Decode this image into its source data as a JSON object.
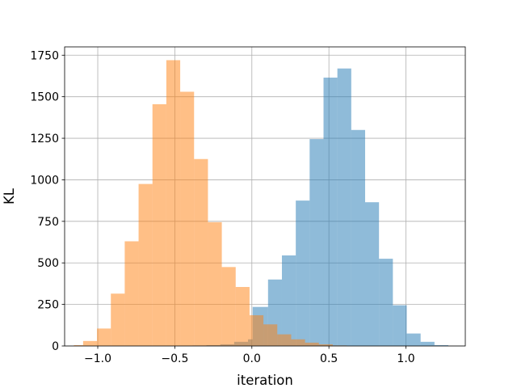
{
  "chart_data": {
    "type": "histogram",
    "title": "",
    "xlabel": "iteration",
    "ylabel": "KL",
    "xlim": [
      -1.215,
      1.385
    ],
    "ylim": [
      0,
      1800
    ],
    "grid": true,
    "legend": false,
    "xticks": [
      {
        "value": -1.0,
        "label": "−1.0"
      },
      {
        "value": -0.5,
        "label": "−0.5"
      },
      {
        "value": 0.0,
        "label": "0.0"
      },
      {
        "value": 0.5,
        "label": "0.5"
      },
      {
        "value": 1.0,
        "label": "1.0"
      }
    ],
    "yticks": [
      {
        "value": 0,
        "label": "0"
      },
      {
        "value": 250,
        "label": "250"
      },
      {
        "value": 500,
        "label": "500"
      },
      {
        "value": 750,
        "label": "750"
      },
      {
        "value": 1000,
        "label": "1000"
      },
      {
        "value": 1250,
        "label": "1250"
      },
      {
        "value": 1500,
        "label": "1500"
      },
      {
        "value": 1750,
        "label": "1750"
      }
    ],
    "series": [
      {
        "color": "#1f77b4",
        "opacity": 0.5,
        "bins": [
          {
            "x0": -0.475,
            "x1": -0.385,
            "value": 1
          },
          {
            "x0": -0.385,
            "x1": -0.295,
            "value": 3
          },
          {
            "x0": -0.295,
            "x1": -0.205,
            "value": 5
          },
          {
            "x0": -0.205,
            "x1": -0.115,
            "value": 10
          },
          {
            "x0": -0.115,
            "x1": -0.025,
            "value": 25
          },
          {
            "x0": -0.025,
            "x1": 0.005,
            "value": 40
          },
          {
            "x0": 0.005,
            "x1": 0.105,
            "value": 235
          },
          {
            "x0": 0.105,
            "x1": 0.195,
            "value": 400
          },
          {
            "x0": 0.195,
            "x1": 0.285,
            "value": 545
          },
          {
            "x0": 0.285,
            "x1": 0.375,
            "value": 875
          },
          {
            "x0": 0.375,
            "x1": 0.465,
            "value": 1245
          },
          {
            "x0": 0.465,
            "x1": 0.555,
            "value": 1615
          },
          {
            "x0": 0.555,
            "x1": 0.645,
            "value": 1670
          },
          {
            "x0": 0.645,
            "x1": 0.735,
            "value": 1300
          },
          {
            "x0": 0.735,
            "x1": 0.825,
            "value": 865
          },
          {
            "x0": 0.825,
            "x1": 0.915,
            "value": 525
          },
          {
            "x0": 0.915,
            "x1": 1.005,
            "value": 245
          },
          {
            "x0": 1.005,
            "x1": 1.095,
            "value": 75
          },
          {
            "x0": 1.095,
            "x1": 1.185,
            "value": 25
          },
          {
            "x0": 1.185,
            "x1": 1.275,
            "value": 5
          }
        ]
      },
      {
        "color": "#ff7f0e",
        "opacity": 0.5,
        "bins": [
          {
            "x0": -1.155,
            "x1": -1.095,
            "value": 5
          },
          {
            "x0": -1.095,
            "x1": -1.005,
            "value": 30
          },
          {
            "x0": -1.005,
            "x1": -0.915,
            "value": 105
          },
          {
            "x0": -0.915,
            "x1": -0.825,
            "value": 315
          },
          {
            "x0": -0.825,
            "x1": -0.735,
            "value": 630
          },
          {
            "x0": -0.735,
            "x1": -0.645,
            "value": 975
          },
          {
            "x0": -0.645,
            "x1": -0.555,
            "value": 1455
          },
          {
            "x0": -0.555,
            "x1": -0.465,
            "value": 1720
          },
          {
            "x0": -0.465,
            "x1": -0.375,
            "value": 1530
          },
          {
            "x0": -0.375,
            "x1": -0.285,
            "value": 1125
          },
          {
            "x0": -0.285,
            "x1": -0.195,
            "value": 745
          },
          {
            "x0": -0.195,
            "x1": -0.105,
            "value": 475
          },
          {
            "x0": -0.105,
            "x1": -0.015,
            "value": 355
          },
          {
            "x0": -0.015,
            "x1": 0.075,
            "value": 185
          },
          {
            "x0": 0.075,
            "x1": 0.165,
            "value": 130
          },
          {
            "x0": 0.165,
            "x1": 0.255,
            "value": 70
          },
          {
            "x0": 0.255,
            "x1": 0.345,
            "value": 40
          },
          {
            "x0": 0.345,
            "x1": 0.435,
            "value": 20
          },
          {
            "x0": 0.435,
            "x1": 0.525,
            "value": 10
          },
          {
            "x0": 0.525,
            "x1": 0.615,
            "value": 3
          }
        ]
      }
    ]
  }
}
